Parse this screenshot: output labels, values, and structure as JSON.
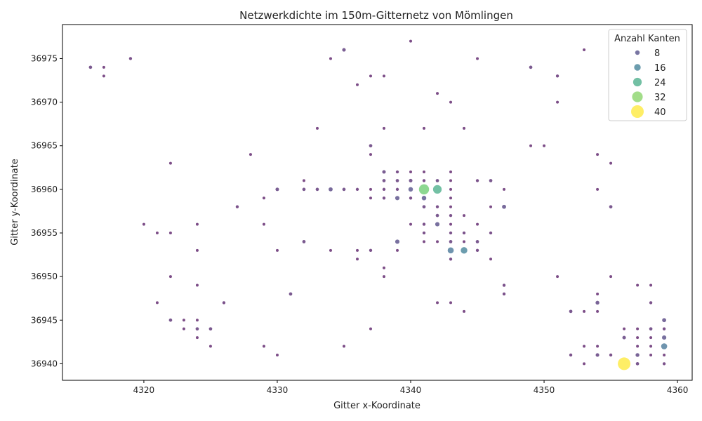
{
  "chart_data": {
    "type": "scatter",
    "title": "Netzwerkdichte im 150m-Gitternetz von Mömlingen",
    "xlabel": "Gitter x-Koordinate",
    "ylabel": "Gitter y-Koordinate",
    "xlim": [
      4313.9,
      4361.1
    ],
    "ylim": [
      36938.1,
      36978.9
    ],
    "xticks": [
      4320,
      4330,
      4340,
      4350,
      4360
    ],
    "yticks": [
      36940,
      36945,
      36950,
      36955,
      36960,
      36965,
      36970,
      36975
    ],
    "legend": {
      "title": "Anzahl Kanten",
      "placement": "top-right",
      "entries": [
        8,
        16,
        24,
        32,
        40
      ]
    },
    "size_range": [
      1,
      40
    ],
    "colormap": [
      "#440154",
      "#3b528b",
      "#21918c",
      "#5ec962",
      "#fde725"
    ],
    "points": [
      {
        "x": 4316,
        "y": 36974,
        "n": 3
      },
      {
        "x": 4317,
        "y": 36974,
        "n": 1
      },
      {
        "x": 4317,
        "y": 36973,
        "n": 1
      },
      {
        "x": 4319,
        "y": 36975,
        "n": 2
      },
      {
        "x": 4334,
        "y": 36975,
        "n": 1
      },
      {
        "x": 4335,
        "y": 36976,
        "n": 4
      },
      {
        "x": 4340,
        "y": 36977,
        "n": 1
      },
      {
        "x": 4345,
        "y": 36975,
        "n": 1
      },
      {
        "x": 4349,
        "y": 36974,
        "n": 3
      },
      {
        "x": 4351,
        "y": 36973,
        "n": 2
      },
      {
        "x": 4353,
        "y": 36976,
        "n": 1
      },
      {
        "x": 4336,
        "y": 36972,
        "n": 1
      },
      {
        "x": 4337,
        "y": 36973,
        "n": 1
      },
      {
        "x": 4338,
        "y": 36973,
        "n": 1
      },
      {
        "x": 4342,
        "y": 36971,
        "n": 1
      },
      {
        "x": 4343,
        "y": 36970,
        "n": 1
      },
      {
        "x": 4351,
        "y": 36970,
        "n": 1
      },
      {
        "x": 4333,
        "y": 36967,
        "n": 1
      },
      {
        "x": 4338,
        "y": 36967,
        "n": 1
      },
      {
        "x": 4341,
        "y": 36967,
        "n": 1
      },
      {
        "x": 4344,
        "y": 36967,
        "n": 1
      },
      {
        "x": 4337,
        "y": 36965,
        "n": 3
      },
      {
        "x": 4349,
        "y": 36965,
        "n": 1
      },
      {
        "x": 4350,
        "y": 36965,
        "n": 1
      },
      {
        "x": 4328,
        "y": 36964,
        "n": 1
      },
      {
        "x": 4337,
        "y": 36964,
        "n": 1
      },
      {
        "x": 4354,
        "y": 36964,
        "n": 1
      },
      {
        "x": 4322,
        "y": 36963,
        "n": 1
      },
      {
        "x": 4355,
        "y": 36963,
        "n": 1
      },
      {
        "x": 4338,
        "y": 36962,
        "n": 4
      },
      {
        "x": 4339,
        "y": 36962,
        "n": 2
      },
      {
        "x": 4340,
        "y": 36962,
        "n": 1
      },
      {
        "x": 4341,
        "y": 36962,
        "n": 1
      },
      {
        "x": 4343,
        "y": 36962,
        "n": 1
      },
      {
        "x": 4332,
        "y": 36961,
        "n": 1
      },
      {
        "x": 4338,
        "y": 36961,
        "n": 3
      },
      {
        "x": 4339,
        "y": 36961,
        "n": 3
      },
      {
        "x": 4340,
        "y": 36961,
        "n": 4
      },
      {
        "x": 4341,
        "y": 36961,
        "n": 2
      },
      {
        "x": 4342,
        "y": 36961,
        "n": 3
      },
      {
        "x": 4343,
        "y": 36961,
        "n": 1
      },
      {
        "x": 4345,
        "y": 36961,
        "n": 2
      },
      {
        "x": 4346,
        "y": 36961,
        "n": 3
      },
      {
        "x": 4330,
        "y": 36960,
        "n": 4
      },
      {
        "x": 4332,
        "y": 36960,
        "n": 3
      },
      {
        "x": 4333,
        "y": 36960,
        "n": 3
      },
      {
        "x": 4334,
        "y": 36960,
        "n": 6
      },
      {
        "x": 4335,
        "y": 36960,
        "n": 3
      },
      {
        "x": 4336,
        "y": 36960,
        "n": 2
      },
      {
        "x": 4337,
        "y": 36960,
        "n": 1
      },
      {
        "x": 4338,
        "y": 36960,
        "n": 2
      },
      {
        "x": 4339,
        "y": 36960,
        "n": 2
      },
      {
        "x": 4340,
        "y": 36960,
        "n": 8
      },
      {
        "x": 4341,
        "y": 36960,
        "n": 30
      },
      {
        "x": 4342,
        "y": 36960,
        "n": 24
      },
      {
        "x": 4343,
        "y": 36960,
        "n": 1
      },
      {
        "x": 4347,
        "y": 36960,
        "n": 1
      },
      {
        "x": 4354,
        "y": 36960,
        "n": 1
      },
      {
        "x": 4329,
        "y": 36959,
        "n": 1
      },
      {
        "x": 4337,
        "y": 36959,
        "n": 1
      },
      {
        "x": 4338,
        "y": 36959,
        "n": 2
      },
      {
        "x": 4339,
        "y": 36959,
        "n": 7
      },
      {
        "x": 4340,
        "y": 36959,
        "n": 2
      },
      {
        "x": 4341,
        "y": 36959,
        "n": 8
      },
      {
        "x": 4343,
        "y": 36959,
        "n": 1
      },
      {
        "x": 4327,
        "y": 36958,
        "n": 2
      },
      {
        "x": 4341,
        "y": 36958,
        "n": 3
      },
      {
        "x": 4342,
        "y": 36958,
        "n": 2
      },
      {
        "x": 4343,
        "y": 36958,
        "n": 1
      },
      {
        "x": 4346,
        "y": 36958,
        "n": 1
      },
      {
        "x": 4347,
        "y": 36958,
        "n": 6
      },
      {
        "x": 4355,
        "y": 36958,
        "n": 3
      },
      {
        "x": 4342,
        "y": 36957,
        "n": 3
      },
      {
        "x": 4343,
        "y": 36957,
        "n": 2
      },
      {
        "x": 4344,
        "y": 36957,
        "n": 1
      },
      {
        "x": 4320,
        "y": 36956,
        "n": 1
      },
      {
        "x": 4324,
        "y": 36956,
        "n": 1
      },
      {
        "x": 4329,
        "y": 36956,
        "n": 1
      },
      {
        "x": 4340,
        "y": 36956,
        "n": 1
      },
      {
        "x": 4341,
        "y": 36956,
        "n": 2
      },
      {
        "x": 4342,
        "y": 36956,
        "n": 7
      },
      {
        "x": 4343,
        "y": 36956,
        "n": 1
      },
      {
        "x": 4345,
        "y": 36956,
        "n": 1
      },
      {
        "x": 4321,
        "y": 36955,
        "n": 1
      },
      {
        "x": 4322,
        "y": 36955,
        "n": 1
      },
      {
        "x": 4341,
        "y": 36955,
        "n": 2
      },
      {
        "x": 4343,
        "y": 36955,
        "n": 2
      },
      {
        "x": 4344,
        "y": 36955,
        "n": 2
      },
      {
        "x": 4346,
        "y": 36955,
        "n": 2
      },
      {
        "x": 4332,
        "y": 36954,
        "n": 3
      },
      {
        "x": 4339,
        "y": 36954,
        "n": 7
      },
      {
        "x": 4341,
        "y": 36954,
        "n": 1
      },
      {
        "x": 4342,
        "y": 36954,
        "n": 1
      },
      {
        "x": 4343,
        "y": 36954,
        "n": 3
      },
      {
        "x": 4344,
        "y": 36954,
        "n": 1
      },
      {
        "x": 4345,
        "y": 36954,
        "n": 3
      },
      {
        "x": 4324,
        "y": 36953,
        "n": 1
      },
      {
        "x": 4330,
        "y": 36953,
        "n": 1
      },
      {
        "x": 4334,
        "y": 36953,
        "n": 1
      },
      {
        "x": 4336,
        "y": 36953,
        "n": 1
      },
      {
        "x": 4337,
        "y": 36953,
        "n": 2
      },
      {
        "x": 4339,
        "y": 36953,
        "n": 1
      },
      {
        "x": 4343,
        "y": 36953,
        "n": 14
      },
      {
        "x": 4344,
        "y": 36953,
        "n": 16
      },
      {
        "x": 4345,
        "y": 36953,
        "n": 2
      },
      {
        "x": 4336,
        "y": 36952,
        "n": 1
      },
      {
        "x": 4343,
        "y": 36952,
        "n": 2
      },
      {
        "x": 4346,
        "y": 36952,
        "n": 1
      },
      {
        "x": 4338,
        "y": 36951,
        "n": 1
      },
      {
        "x": 4322,
        "y": 36950,
        "n": 1
      },
      {
        "x": 4338,
        "y": 36950,
        "n": 1
      },
      {
        "x": 4351,
        "y": 36950,
        "n": 1
      },
      {
        "x": 4355,
        "y": 36950,
        "n": 1
      },
      {
        "x": 4324,
        "y": 36949,
        "n": 1
      },
      {
        "x": 4347,
        "y": 36949,
        "n": 2
      },
      {
        "x": 4357,
        "y": 36949,
        "n": 1
      },
      {
        "x": 4358,
        "y": 36949,
        "n": 1
      },
      {
        "x": 4331,
        "y": 36948,
        "n": 3
      },
      {
        "x": 4347,
        "y": 36948,
        "n": 2
      },
      {
        "x": 4354,
        "y": 36948,
        "n": 1
      },
      {
        "x": 4321,
        "y": 36947,
        "n": 1
      },
      {
        "x": 4326,
        "y": 36947,
        "n": 2
      },
      {
        "x": 4342,
        "y": 36947,
        "n": 1
      },
      {
        "x": 4343,
        "y": 36947,
        "n": 1
      },
      {
        "x": 4354,
        "y": 36947,
        "n": 5
      },
      {
        "x": 4358,
        "y": 36947,
        "n": 2
      },
      {
        "x": 4344,
        "y": 36946,
        "n": 1
      },
      {
        "x": 4352,
        "y": 36946,
        "n": 3
      },
      {
        "x": 4353,
        "y": 36946,
        "n": 1
      },
      {
        "x": 4354,
        "y": 36946,
        "n": 1
      },
      {
        "x": 4322,
        "y": 36945,
        "n": 3
      },
      {
        "x": 4323,
        "y": 36945,
        "n": 1
      },
      {
        "x": 4324,
        "y": 36945,
        "n": 1
      },
      {
        "x": 4359,
        "y": 36945,
        "n": 6
      },
      {
        "x": 4323,
        "y": 36944,
        "n": 1
      },
      {
        "x": 4324,
        "y": 36944,
        "n": 3
      },
      {
        "x": 4325,
        "y": 36944,
        "n": 3
      },
      {
        "x": 4337,
        "y": 36944,
        "n": 1
      },
      {
        "x": 4356,
        "y": 36944,
        "n": 1
      },
      {
        "x": 4357,
        "y": 36944,
        "n": 1
      },
      {
        "x": 4358,
        "y": 36944,
        "n": 3
      },
      {
        "x": 4359,
        "y": 36944,
        "n": 2
      },
      {
        "x": 4324,
        "y": 36943,
        "n": 1
      },
      {
        "x": 4356,
        "y": 36943,
        "n": 4
      },
      {
        "x": 4357,
        "y": 36943,
        "n": 1
      },
      {
        "x": 4358,
        "y": 36943,
        "n": 1
      },
      {
        "x": 4359,
        "y": 36943,
        "n": 7
      },
      {
        "x": 4325,
        "y": 36942,
        "n": 1
      },
      {
        "x": 4329,
        "y": 36942,
        "n": 1
      },
      {
        "x": 4335,
        "y": 36942,
        "n": 1
      },
      {
        "x": 4353,
        "y": 36942,
        "n": 1
      },
      {
        "x": 4354,
        "y": 36942,
        "n": 1
      },
      {
        "x": 4357,
        "y": 36942,
        "n": 1
      },
      {
        "x": 4358,
        "y": 36942,
        "n": 1
      },
      {
        "x": 4359,
        "y": 36942,
        "n": 14
      },
      {
        "x": 4330,
        "y": 36941,
        "n": 1
      },
      {
        "x": 4352,
        "y": 36941,
        "n": 2
      },
      {
        "x": 4354,
        "y": 36941,
        "n": 4
      },
      {
        "x": 4355,
        "y": 36941,
        "n": 2
      },
      {
        "x": 4357,
        "y": 36941,
        "n": 5
      },
      {
        "x": 4358,
        "y": 36941,
        "n": 1
      },
      {
        "x": 4359,
        "y": 36941,
        "n": 1
      },
      {
        "x": 4353,
        "y": 36940,
        "n": 1
      },
      {
        "x": 4356,
        "y": 36940,
        "n": 40
      },
      {
        "x": 4357,
        "y": 36940,
        "n": 3
      },
      {
        "x": 4359,
        "y": 36940,
        "n": 2
      }
    ]
  }
}
